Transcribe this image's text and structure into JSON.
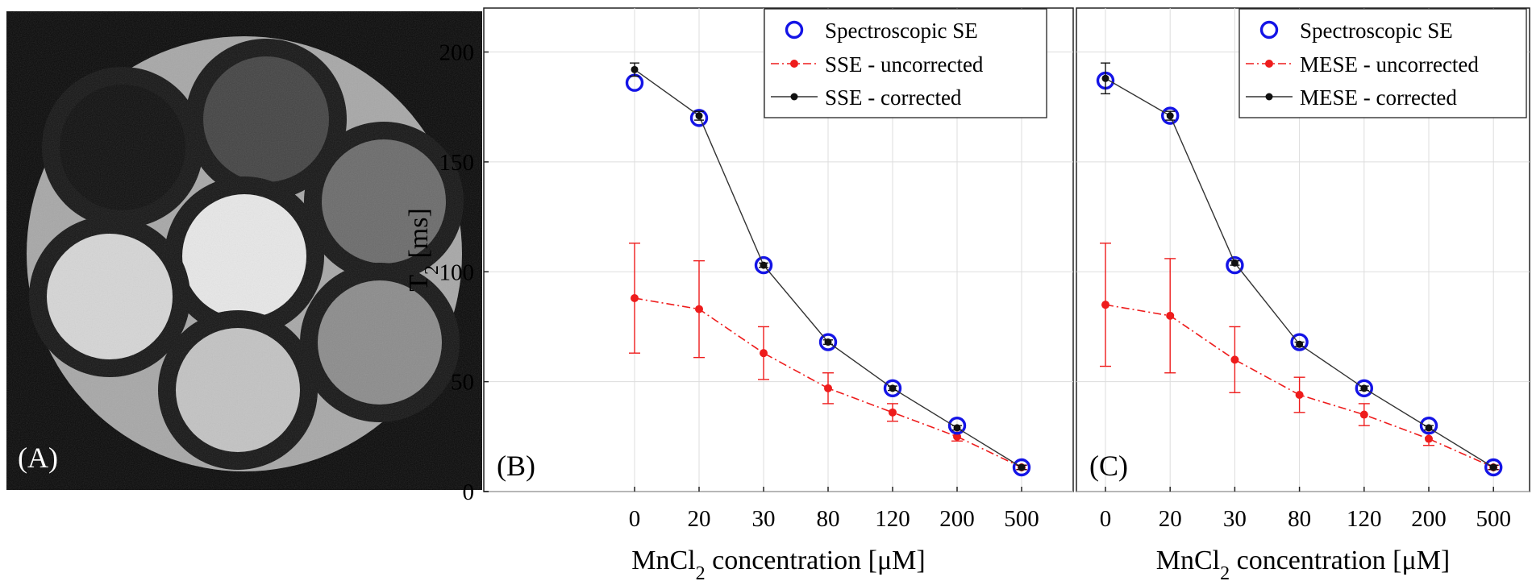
{
  "panels": {
    "a": {
      "label": "(A)"
    }
  },
  "colors": {
    "spectroscopic": "#1414e6",
    "uncorrected": "#ee1c1c",
    "corrected": "#111111",
    "grid": "#dddddd"
  },
  "chart_data": [
    {
      "type": "line",
      "panel_label": "(B)",
      "categories": [
        "0",
        "20",
        "30",
        "80",
        "120",
        "200",
        "500"
      ],
      "ylabel_main": "T",
      "ylabel_sub": "2",
      "ylabel_tail": " [ms]",
      "xlabel_pre": "MnCl",
      "xlabel_sub": "2",
      "xlabel_tail": " concentration  [μM]",
      "ylim": [
        0,
        220
      ],
      "yticks": [
        "0",
        "50",
        "100",
        "150",
        "200"
      ],
      "grid": true,
      "legend_position": "top-right",
      "series": [
        {
          "name": "Spectroscopic SE",
          "style": "open-circle",
          "values": [
            186,
            170,
            103,
            68,
            47,
            30,
            11
          ]
        },
        {
          "name": "SSE - uncorrected",
          "style": "dash-dot-dot",
          "values": [
            88,
            83,
            63,
            47,
            36,
            25,
            11
          ],
          "err": [
            25,
            22,
            12,
            7,
            4,
            2,
            1
          ]
        },
        {
          "name": "SSE - corrected",
          "style": "solid-dot",
          "values": [
            192,
            171,
            103,
            68,
            47,
            29,
            11
          ],
          "err": [
            3,
            2,
            1,
            1,
            1,
            1,
            1
          ]
        }
      ]
    },
    {
      "type": "line",
      "panel_label": "(C)",
      "categories": [
        "0",
        "20",
        "30",
        "80",
        "120",
        "200",
        "500"
      ],
      "xlabel_pre": "MnCl",
      "xlabel_sub": "2",
      "xlabel_tail": " concentration  [μM]",
      "ylim": [
        0,
        220
      ],
      "grid": true,
      "legend_position": "top-right",
      "series": [
        {
          "name": "Spectroscopic SE",
          "style": "open-circle",
          "values": [
            187,
            171,
            103,
            68,
            47,
            30,
            11
          ]
        },
        {
          "name": "MESE - uncorrected",
          "style": "dash-dot-dot",
          "values": [
            85,
            80,
            60,
            44,
            35,
            24,
            11
          ],
          "err": [
            28,
            26,
            15,
            8,
            5,
            3,
            1
          ]
        },
        {
          "name": "MESE - corrected",
          "style": "solid-dot",
          "values": [
            188,
            171,
            104,
            67,
            47,
            29,
            11
          ],
          "err": [
            7,
            2,
            1,
            1,
            1,
            1,
            1
          ]
        }
      ]
    }
  ]
}
